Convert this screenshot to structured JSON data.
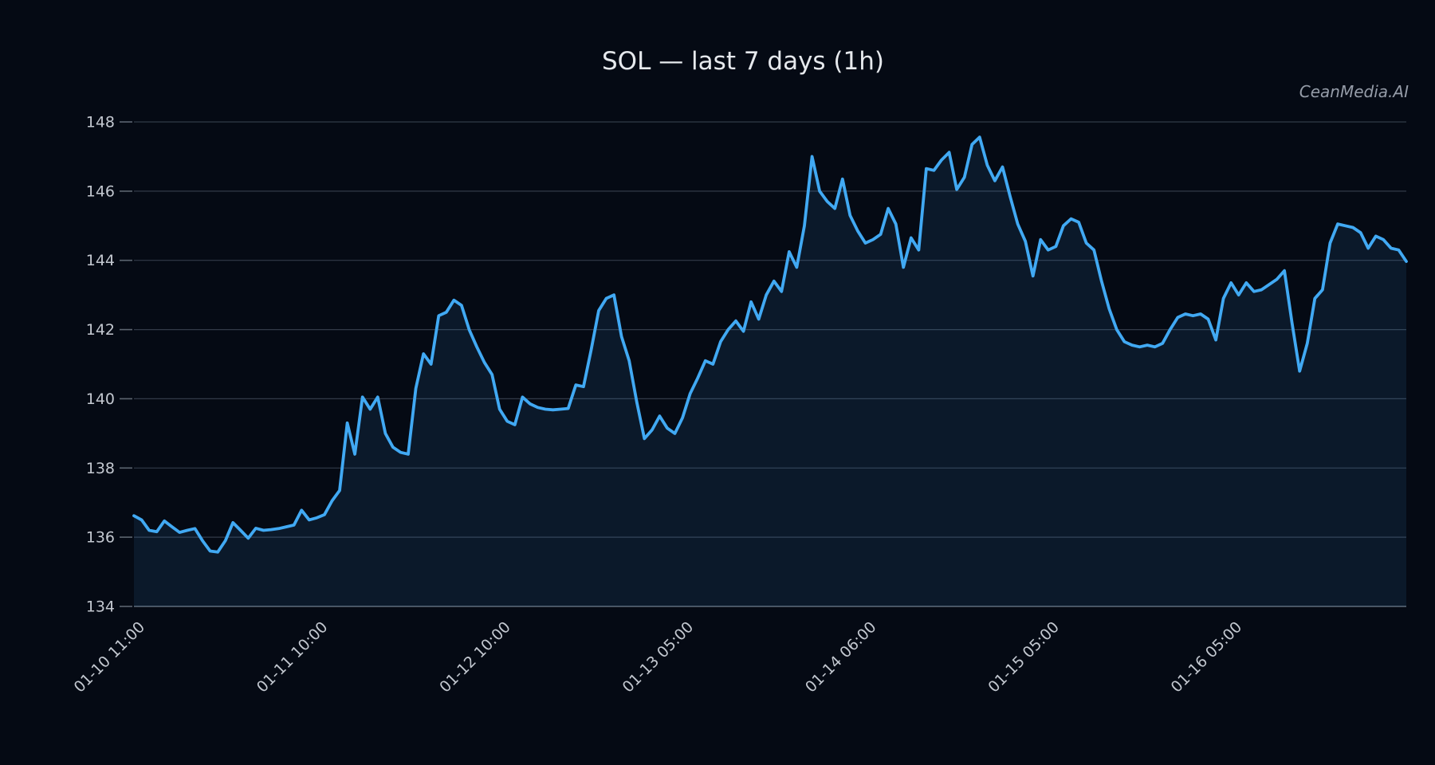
{
  "figure": {
    "title": "SOL — last 7 days (1h)",
    "watermark": "CeanMedia.AI"
  },
  "chart_data": {
    "type": "line",
    "title": "SOL — last 7 days (1h)",
    "xlabel": "",
    "ylabel": "",
    "x_start": "01-10 11:00",
    "x_interval": "1h",
    "ylim": [
      134,
      148
    ],
    "yticks": [
      134,
      136,
      138,
      140,
      142,
      144,
      146,
      148
    ],
    "xticks": [
      {
        "index": 1,
        "label": "01-10 11:00"
      },
      {
        "index": 25,
        "label": "01-11 10:00"
      },
      {
        "index": 49,
        "label": "01-12 10:00"
      },
      {
        "index": 73,
        "label": "01-13 05:00"
      },
      {
        "index": 97,
        "label": "01-14 06:00"
      },
      {
        "index": 121,
        "label": "01-15 05:00"
      },
      {
        "index": 145,
        "label": "01-16 05:00"
      }
    ],
    "grid": "horizontal",
    "legend": "none",
    "colors": {
      "background": "#050a14",
      "line": "#41a9f3",
      "fill": "rgba(65,169,243,0.10)",
      "gridline": "#323a48",
      "axis_line": "#49525e",
      "tick_stub": "#5c6570",
      "tick_label": "#c3c8d0",
      "title": "#e6e9ed",
      "watermark": "#959ca8"
    },
    "series": [
      {
        "name": "SOL",
        "values": [
          136.62,
          136.5,
          136.2,
          136.16,
          136.47,
          136.3,
          136.14,
          136.2,
          136.25,
          135.9,
          135.6,
          135.57,
          135.9,
          136.42,
          136.2,
          135.97,
          136.26,
          136.2,
          136.22,
          136.25,
          136.3,
          136.35,
          136.78,
          136.5,
          136.56,
          136.65,
          137.05,
          137.35,
          139.3,
          138.4,
          140.05,
          139.7,
          140.05,
          139.0,
          138.6,
          138.45,
          138.4,
          140.3,
          141.3,
          141.0,
          142.4,
          142.5,
          142.85,
          142.7,
          142.0,
          141.5,
          141.05,
          140.7,
          139.7,
          139.35,
          139.25,
          140.05,
          139.85,
          139.75,
          139.7,
          139.68,
          139.7,
          139.72,
          140.4,
          140.35,
          141.4,
          142.55,
          142.9,
          143.0,
          141.8,
          141.1,
          139.9,
          138.85,
          139.1,
          139.5,
          139.15,
          139.0,
          139.45,
          140.15,
          140.6,
          141.1,
          141.0,
          141.65,
          142.0,
          142.25,
          141.95,
          142.8,
          142.3,
          143.0,
          143.4,
          143.1,
          144.25,
          143.8,
          145.0,
          147.0,
          146.0,
          145.7,
          145.5,
          146.35,
          145.3,
          144.85,
          144.5,
          144.6,
          144.75,
          145.5,
          145.05,
          143.8,
          144.65,
          144.3,
          146.65,
          146.6,
          146.9,
          147.12,
          146.05,
          146.4,
          147.35,
          147.56,
          146.75,
          146.3,
          146.7,
          145.85,
          145.05,
          144.55,
          143.55,
          144.6,
          144.3,
          144.4,
          145.0,
          145.2,
          145.1,
          144.5,
          144.3,
          143.4,
          142.6,
          142.0,
          141.65,
          141.55,
          141.5,
          141.55,
          141.5,
          141.6,
          142.0,
          142.35,
          142.45,
          142.4,
          142.45,
          142.3,
          141.7,
          142.9,
          143.35,
          143.0,
          143.35,
          143.1,
          143.15,
          143.3,
          143.45,
          143.7,
          142.2,
          140.8,
          141.6,
          142.9,
          143.15,
          144.5,
          145.05,
          145.0,
          144.95,
          144.8,
          144.35,
          144.7,
          144.6,
          144.35,
          144.3,
          143.97
        ]
      }
    ]
  }
}
